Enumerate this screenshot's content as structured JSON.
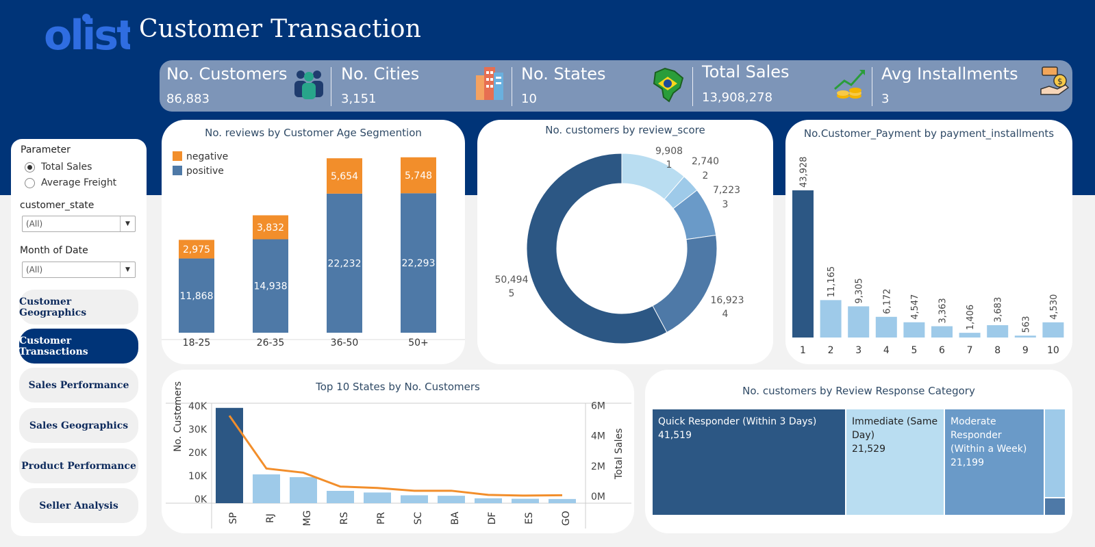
{
  "header": {
    "logo_text": "olist",
    "title": "Customer Transaction"
  },
  "kpis": [
    {
      "label": "No. Customers",
      "value": "86,883",
      "icon": "people-icon"
    },
    {
      "label": "No. Cities",
      "value": "3,151",
      "icon": "buildings-icon"
    },
    {
      "label": "No. States",
      "value": "10",
      "icon": "brazil-map-icon"
    },
    {
      "label": "Total Sales",
      "value": "13,908,278",
      "icon": "growth-coins-icon"
    },
    {
      "label": "Avg Installments",
      "value": "3",
      "icon": "hand-money-icon"
    }
  ],
  "sidebar": {
    "parameter_title": "Parameter",
    "radio_options": [
      {
        "label": "Total Sales",
        "selected": true
      },
      {
        "label": "Average Freight",
        "selected": false
      }
    ],
    "filters": [
      {
        "label": "customer_state",
        "value": "(All)"
      },
      {
        "label": "Month of Date",
        "value": "(All)"
      }
    ],
    "nav": [
      {
        "label": "Customer Geographics",
        "active": false
      },
      {
        "label": "Customer Transactions",
        "active": true
      },
      {
        "label": "Sales Performance",
        "active": false
      },
      {
        "label": "Sales  Geographics",
        "active": false
      },
      {
        "label": "Product Performance",
        "active": false
      },
      {
        "label": "Seller Analysis",
        "active": false
      }
    ]
  },
  "colors": {
    "navy": "#003478",
    "kpi_bar": "#7d95b8",
    "negative": "#f28e2b",
    "positive": "#4e79a7",
    "dark_blue": "#2c5784",
    "light_blue": "#9ecae9",
    "very_light_blue": "#b9ddf1",
    "mid_blue": "#6a9ac8",
    "line_orange": "#f28e2b"
  },
  "chart_data": [
    {
      "id": "age_segment",
      "type": "bar",
      "stacked": true,
      "title": "No. reviews by Customer Age Segmention",
      "categories": [
        "18-25",
        "26-35",
        "36-50",
        "50+"
      ],
      "series": [
        {
          "name": "positive",
          "values": [
            11868,
            14938,
            22232,
            22293
          ],
          "labels": [
            "11,868",
            "14,938",
            "22,232",
            "22,293"
          ]
        },
        {
          "name": "negative",
          "values": [
            2975,
            3832,
            5654,
            5748
          ],
          "labels": [
            "2,975",
            "3,832",
            "5,654",
            "5,748"
          ]
        }
      ],
      "legend": "top-left",
      "ylim": [
        0,
        29000
      ]
    },
    {
      "id": "review_score",
      "type": "pie",
      "donut": true,
      "title": "No. customers by review_score",
      "slices": [
        {
          "label": "1",
          "value": 9908,
          "value_label": "9,908"
        },
        {
          "label": "2",
          "value": 2740,
          "value_label": "2,740"
        },
        {
          "label": "3",
          "value": 7223,
          "value_label": "7,223"
        },
        {
          "label": "4",
          "value": 16923,
          "value_label": "16,923"
        },
        {
          "label": "5",
          "value": 50494,
          "value_label": "50,494"
        }
      ]
    },
    {
      "id": "installments",
      "type": "bar",
      "title": "No.Customer_Payment by payment_installments",
      "categories": [
        "1",
        "2",
        "3",
        "4",
        "5",
        "6",
        "7",
        "8",
        "9",
        "10"
      ],
      "values": [
        43928,
        11165,
        9305,
        6172,
        4547,
        3363,
        1406,
        3683,
        563,
        4530
      ],
      "labels": [
        "43,928",
        "11,165",
        "9,305",
        "6,172",
        "4,547",
        "3,363",
        "1,406",
        "3,683",
        "563",
        "4,530"
      ],
      "ylim": [
        0,
        47000
      ]
    },
    {
      "id": "top_states",
      "type": "bar",
      "title": "Top 10 States by No. Customers",
      "categories": [
        "SP",
        "RJ",
        "MG",
        "RS",
        "PR",
        "SC",
        "BA",
        "DF",
        "ES",
        "GO"
      ],
      "series": [
        {
          "values": [
            41000,
            12400,
            11200,
            5300,
            4600,
            3400,
            3200,
            2100,
            1900,
            1800
          ]
        },
        {
          "values": [
            6000000,
            2200000,
            1900000,
            900000,
            800000,
            600000,
            600000,
            300000,
            250000,
            280000
          ]
        }
      ],
      "ylabel": "No. Customers",
      "y2label": "Total Sales",
      "yticks": [
        "0K",
        "10K",
        "20K",
        "30K",
        "40K"
      ],
      "y2ticks": [
        "0M",
        "2M",
        "4M",
        "6M"
      ],
      "ylim": [
        0,
        43000
      ],
      "y2lim": [
        0,
        6600000
      ]
    },
    {
      "id": "response_category",
      "type": "treemap",
      "title": "No. customers by Review Response Category",
      "cells": [
        {
          "label": "Quick Responder (Within 3 Days)",
          "value": 41519,
          "value_label": "41,519"
        },
        {
          "label": "Immediate (Same Day)",
          "value": 21529,
          "value_label": "21,529"
        },
        {
          "label": "Moderate Responder (Within a Week)",
          "value": 21199,
          "value_label": "21,199"
        },
        {
          "label": "",
          "value": 5500,
          "value_label": ""
        },
        {
          "label": "",
          "value": 1100,
          "value_label": ""
        }
      ]
    }
  ]
}
